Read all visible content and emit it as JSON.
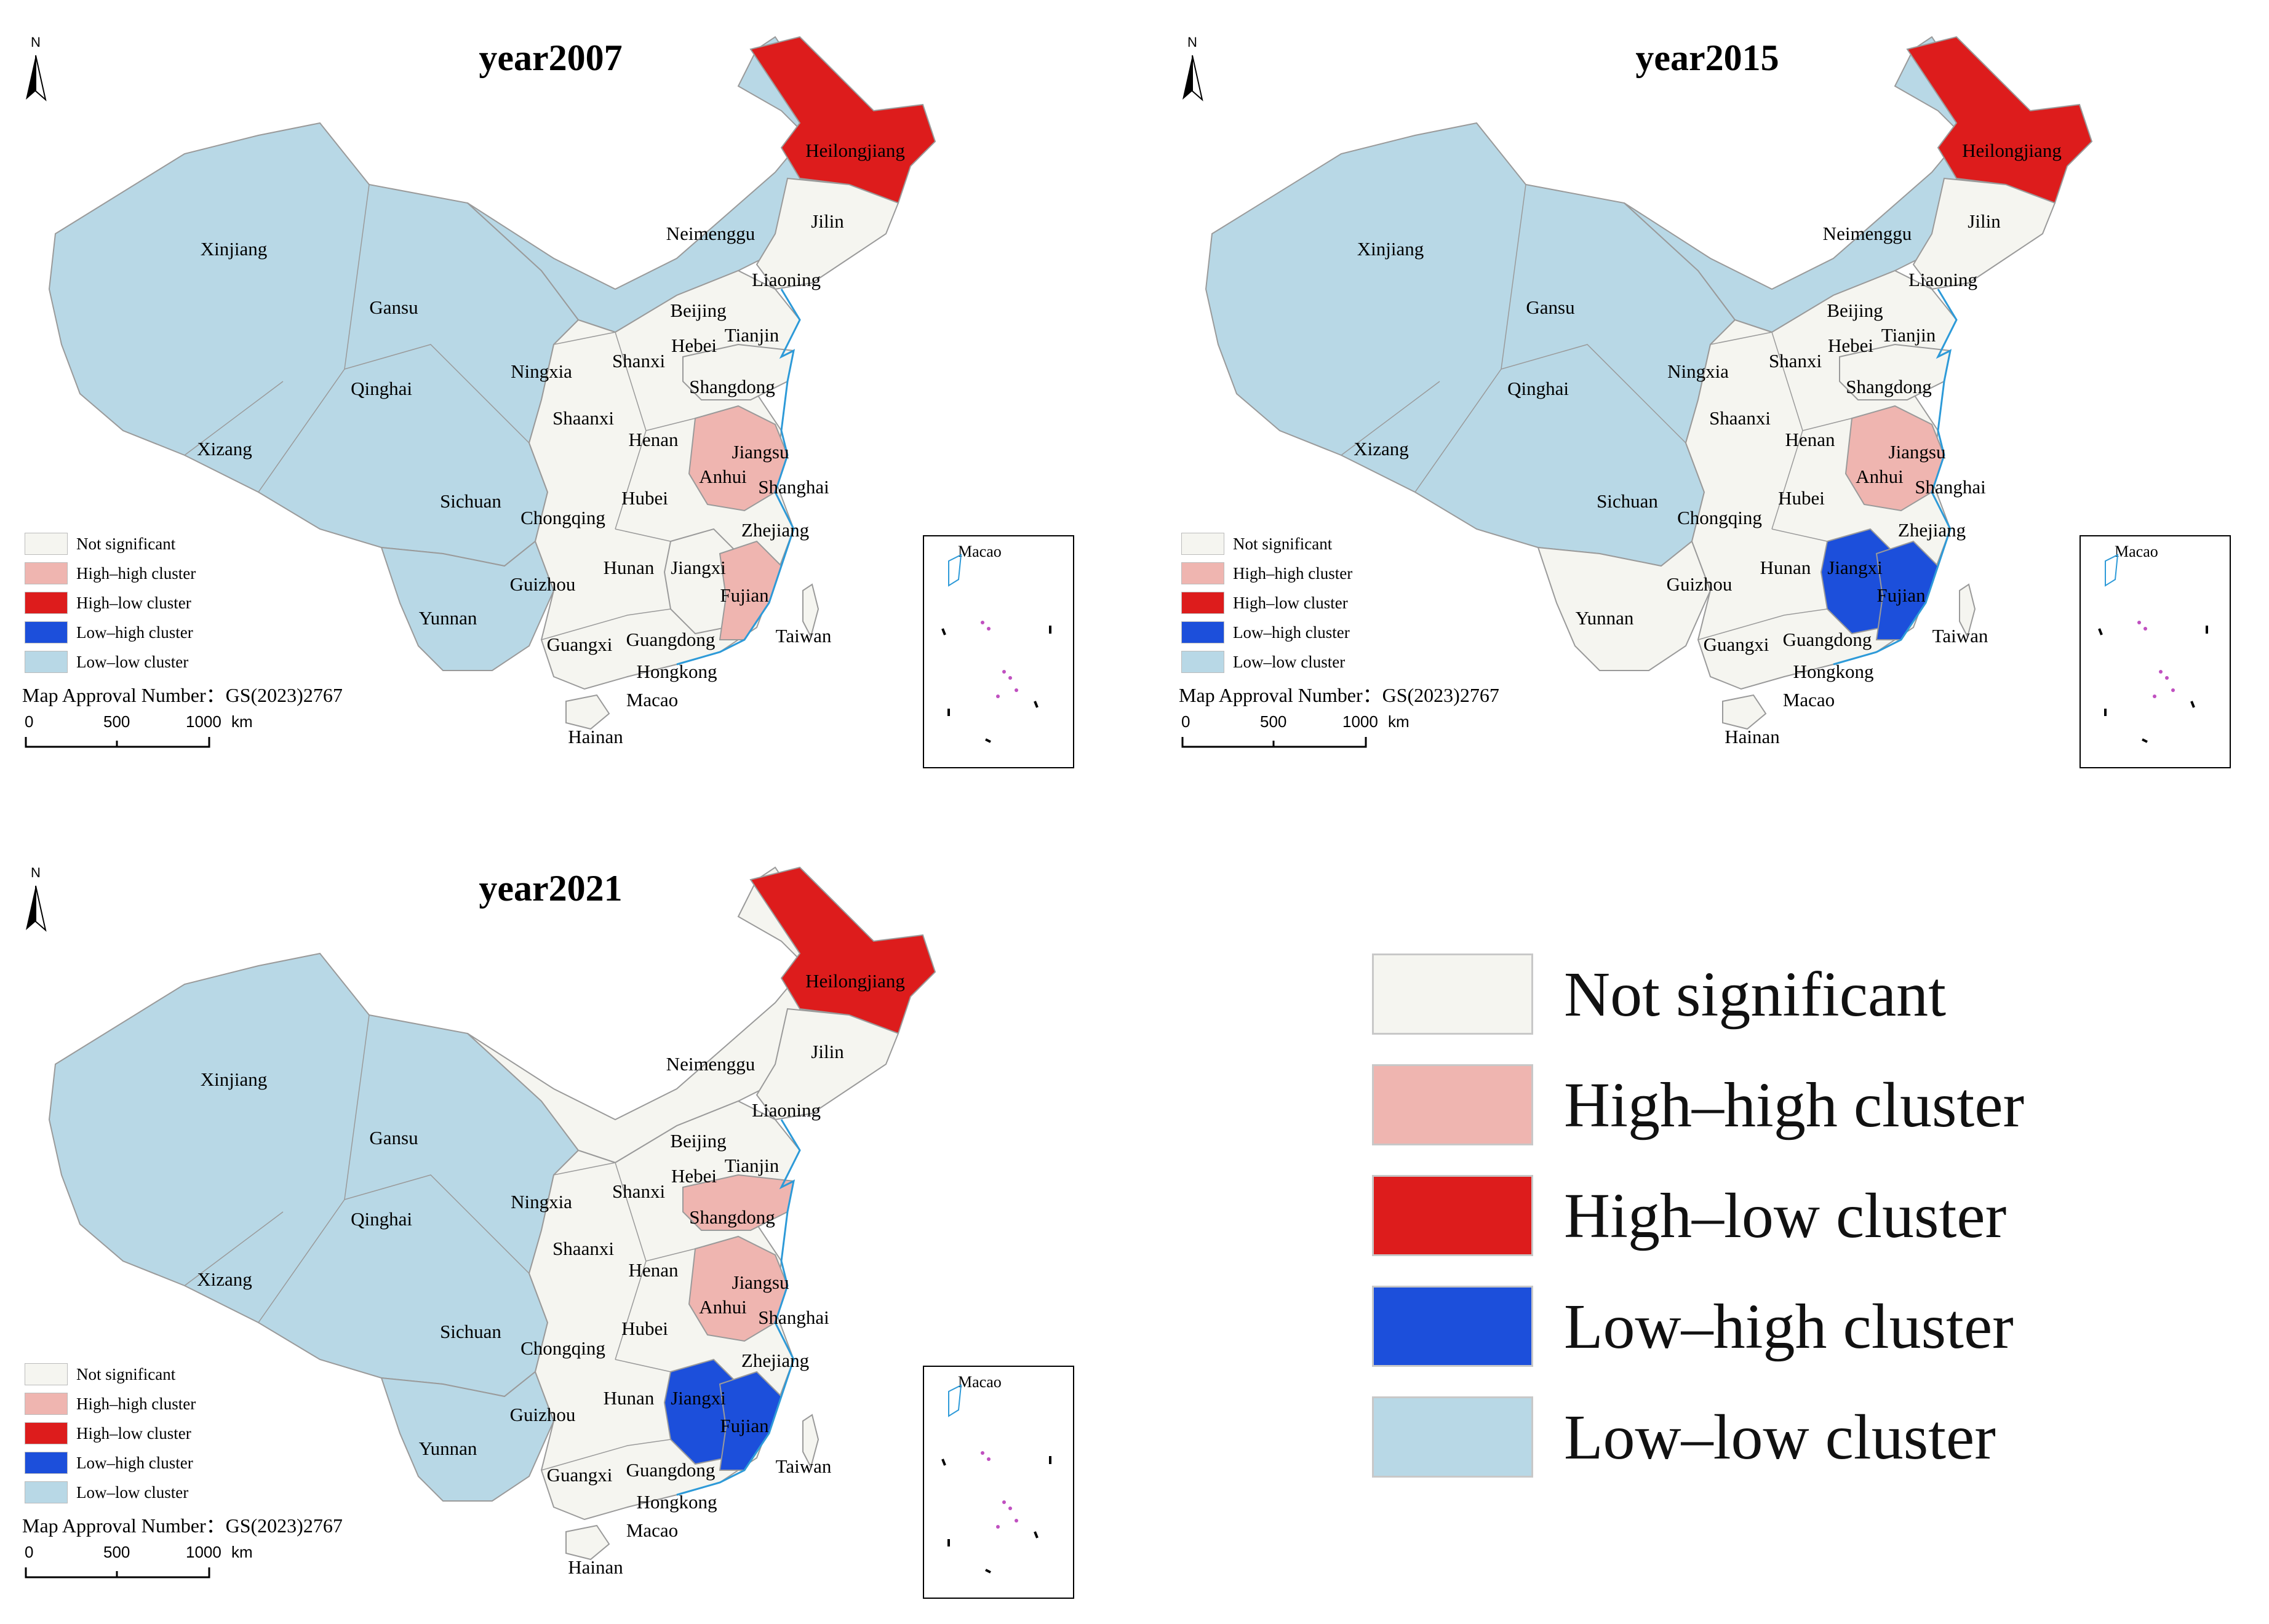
{
  "colors": {
    "not_significant": "#f5f5f0",
    "high_high": "#efb5b0",
    "high_low": "#dd1c1c",
    "low_high": "#1c4fdb",
    "low_low": "#b8d8e6",
    "boundary": "#9a9a9a",
    "coast": "#2d9ad8"
  },
  "legend": {
    "not_significant": "Not significant",
    "high_high": "High–high cluster",
    "high_low": "High–low cluster",
    "low_high": "Low–high cluster",
    "low_low": "Low–low cluster"
  },
  "approval": "Map Approval Number：GS(2023)2767",
  "scale": {
    "t0": "0",
    "t1": "500",
    "t2": "1000",
    "unit": "km"
  },
  "north": "N",
  "inset_label": "Macao",
  "provinces": [
    "Xinjiang",
    "Gansu",
    "Qinghai",
    "Xizang",
    "Sichuan",
    "Yunnan",
    "Neimenggu",
    "Heilongjiang",
    "Jilin",
    "Liaoning",
    "Beijing",
    "Tianjin",
    "Hebei",
    "Shanxi",
    "Ningxia",
    "Shaanxi",
    "Shangdong",
    "Henan",
    "Jiangsu",
    "Anhui",
    "Shanghai",
    "Hubei",
    "Chongqing",
    "Zhejiang",
    "Hunan",
    "Jiangxi",
    "Guizhou",
    "Fujian",
    "Guangxi",
    "Guangdong",
    "Taiwan",
    "Hongkong",
    "Macao",
    "Hainan"
  ],
  "panels": [
    {
      "title": "year2007",
      "classes": {
        "west": "low_low",
        "north": "low_low",
        "heilongjiang": "high_low",
        "jilin": "not_significant",
        "central": "not_significant",
        "yunnan": "low_low",
        "shandong": "not_significant",
        "jiangsu_anhui": "high_high",
        "jiangxi_fujian": "not_significant",
        "fujian": "high_high"
      }
    },
    {
      "title": "year2015",
      "classes": {
        "west": "low_low",
        "north": "low_low",
        "heilongjiang": "high_low",
        "jilin": "not_significant",
        "central": "not_significant",
        "yunnan": "not_significant",
        "shandong": "not_significant",
        "jiangsu_anhui": "high_high",
        "jiangxi_fujian": "low_high",
        "fujian": "low_high"
      }
    },
    {
      "title": "year2021",
      "classes": {
        "west": "low_low",
        "north": "not_significant",
        "heilongjiang": "high_low",
        "jilin": "not_significant",
        "central": "not_significant",
        "yunnan": "low_low",
        "shandong": "high_high",
        "jiangsu_anhui": "high_high",
        "jiangxi_fujian": "low_high",
        "fujian": "low_high"
      }
    }
  ]
}
